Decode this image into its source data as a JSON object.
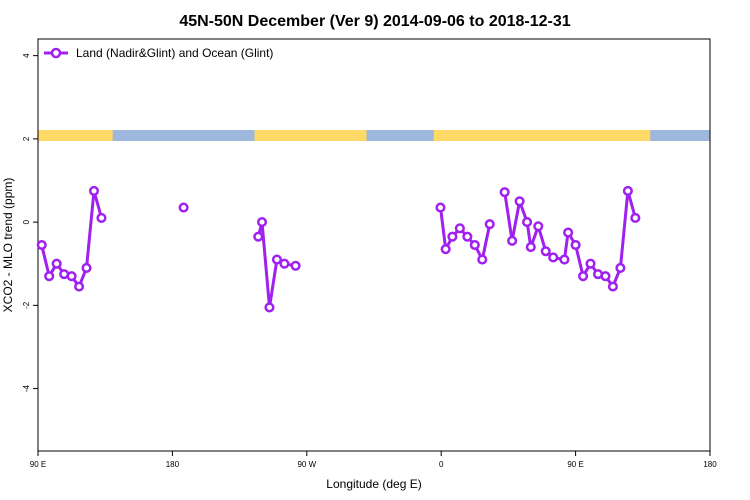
{
  "chart_data": {
    "type": "line",
    "title": "45N-50N December (Ver 9)   2014-09-06 to 2018-12-31",
    "xlabel": "Longitude (deg E)",
    "ylabel": "XCO2 - MLO trend (ppm)",
    "xlim": [
      90,
      540
    ],
    "ylim": [
      -5.5,
      4.4
    ],
    "x_ticks": [
      {
        "value": 90,
        "label": "90 E"
      },
      {
        "value": 180,
        "label": "180"
      },
      {
        "value": 270,
        "label": "90 W"
      },
      {
        "value": 360,
        "label": "0"
      },
      {
        "value": 450,
        "label": "90 E"
      },
      {
        "value": 540,
        "label": "180"
      }
    ],
    "y_ticks": [
      {
        "value": 4,
        "label": "4"
      },
      {
        "value": 2,
        "label": "2"
      },
      {
        "value": 0,
        "label": "0"
      },
      {
        "value": -2,
        "label": "-2"
      },
      {
        "value": -4,
        "label": "-4"
      }
    ],
    "grid": false,
    "legend_position": "top-left",
    "series": [
      {
        "name": "Land (Nadir&Glint) and Ocean (Glint)",
        "color": "#a020f0",
        "segments": [
          [
            [
              92.5,
              -0.55
            ],
            [
              97.5,
              -1.3
            ],
            [
              102.5,
              -1.0
            ],
            [
              107.5,
              -1.25
            ],
            [
              112.5,
              -1.3
            ],
            [
              117.5,
              -1.55
            ],
            [
              122.5,
              -1.1
            ],
            [
              127.5,
              0.75
            ],
            [
              132.5,
              0.1
            ]
          ],
          [
            [
              187.5,
              0.35
            ]
          ],
          [
            [
              237.5,
              -0.35
            ],
            [
              240,
              0.0
            ],
            [
              245,
              -2.05
            ],
            [
              250,
              -0.9
            ],
            [
              255,
              -1.0
            ],
            [
              262.5,
              -1.05
            ]
          ],
          [
            [
              359.5,
              0.35
            ],
            [
              363,
              -0.65
            ],
            [
              367.5,
              -0.35
            ],
            [
              372.5,
              -0.15
            ],
            [
              377.5,
              -0.35
            ],
            [
              382.5,
              -0.55
            ],
            [
              387.5,
              -0.9
            ],
            [
              392.5,
              -0.05
            ]
          ],
          [
            [
              402.5,
              0.72
            ],
            [
              407.5,
              -0.45
            ],
            [
              412.5,
              0.5
            ],
            [
              417.5,
              0.0
            ],
            [
              420,
              -0.6
            ],
            [
              425,
              -0.1
            ],
            [
              430,
              -0.7
            ],
            [
              435,
              -0.85
            ],
            [
              442.5,
              -0.9
            ],
            [
              445,
              -0.25
            ],
            [
              450,
              -0.55
            ],
            [
              455,
              -1.3
            ],
            [
              460,
              -1.0
            ],
            [
              465,
              -1.25
            ],
            [
              470,
              -1.3
            ],
            [
              475,
              -1.55
            ],
            [
              480,
              -1.1
            ],
            [
              485,
              0.75
            ],
            [
              490,
              0.1
            ]
          ]
        ]
      }
    ]
  },
  "surface_strip": {
    "land_color": "#ffd966",
    "ocean_color": "#9db8dc",
    "land_ranges": [
      [
        90,
        140
      ],
      [
        235,
        310
      ],
      [
        355,
        500
      ]
    ]
  }
}
